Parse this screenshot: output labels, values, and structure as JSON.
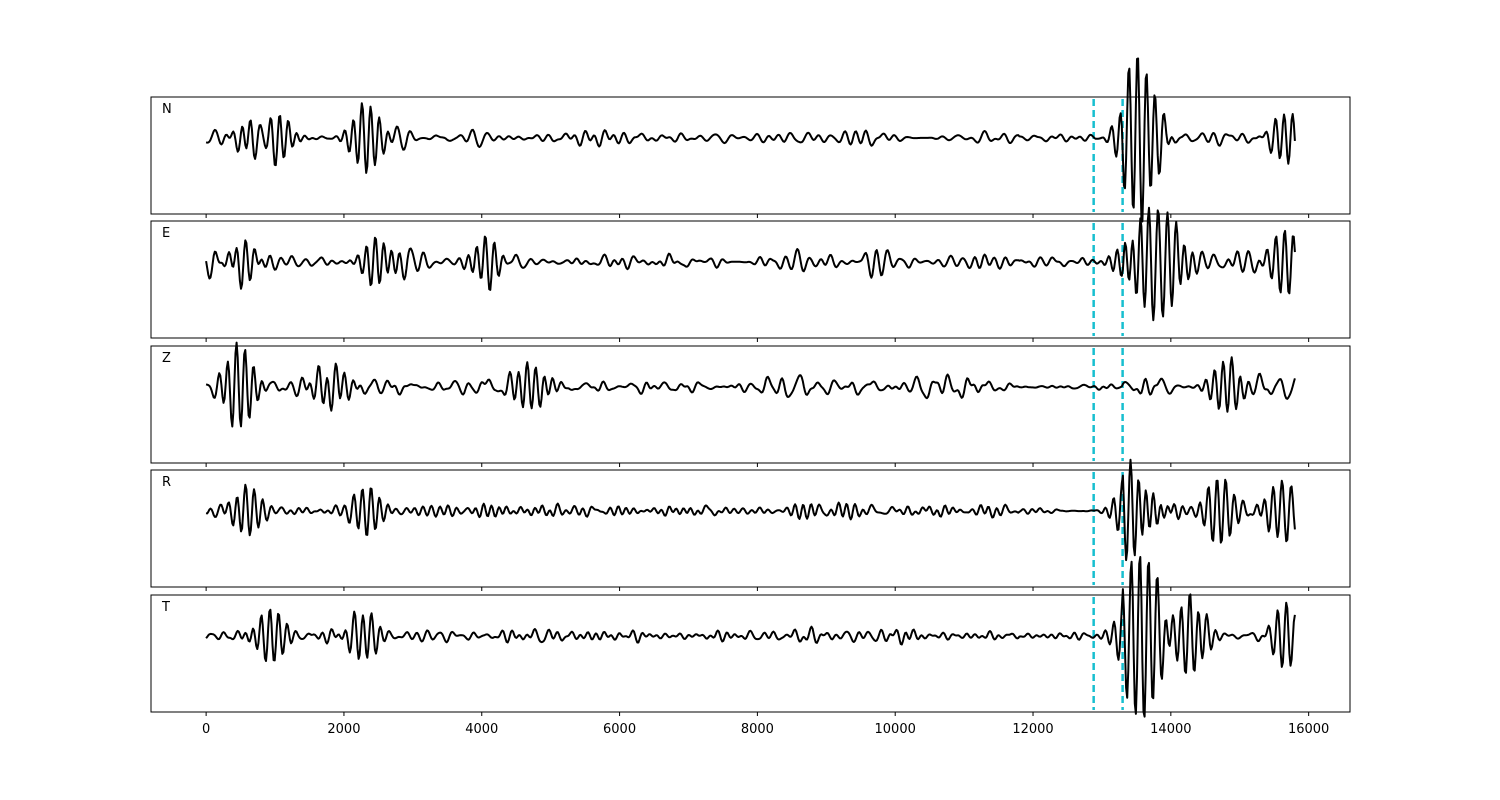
{
  "chart_data": {
    "type": "line",
    "title": "",
    "xlabel": "",
    "ylabel": "",
    "xlim": [
      -800,
      16600
    ],
    "x_ticks": [
      "0",
      "2000",
      "4000",
      "6000",
      "8000",
      "10000",
      "12000",
      "14000",
      "16000"
    ],
    "x_tick_values": [
      0,
      2000,
      4000,
      6000,
      8000,
      10000,
      12000,
      14000,
      16000
    ],
    "samples": 15800,
    "pick_lines": [
      12880,
      13300
    ],
    "pick_color": "#17becf",
    "trace_color": "#000000",
    "grid": false,
    "legend": "none",
    "panels": [
      {
        "label": "N",
        "events": [
          [
            700,
            0.55
          ],
          [
            1000,
            0.7
          ],
          [
            2320,
            0.75
          ],
          [
            13450,
            1.0
          ],
          [
            13700,
            0.55
          ],
          [
            15700,
            0.45
          ]
        ]
      },
      {
        "label": "E",
        "events": [
          [
            500,
            0.45
          ],
          [
            2500,
            0.6
          ],
          [
            4100,
            0.5
          ],
          [
            13400,
            0.6
          ],
          [
            13600,
            1.0
          ],
          [
            14000,
            0.7
          ],
          [
            15700,
            0.55
          ]
        ]
      },
      {
        "label": "Z",
        "events": [
          [
            480,
            1.0
          ],
          [
            1800,
            0.45
          ],
          [
            4700,
            0.55
          ],
          [
            14800,
            0.45
          ]
        ]
      },
      {
        "label": "R",
        "events": [
          [
            600,
            0.45
          ],
          [
            2300,
            0.5
          ],
          [
            13450,
            1.0
          ],
          [
            13650,
            0.65
          ],
          [
            14700,
            0.55
          ],
          [
            15650,
            0.55
          ]
        ]
      },
      {
        "label": "T",
        "events": [
          [
            950,
            0.6
          ],
          [
            2300,
            0.55
          ],
          [
            13450,
            1.0
          ],
          [
            13700,
            0.85
          ],
          [
            14300,
            0.6
          ],
          [
            15700,
            0.55
          ]
        ]
      }
    ]
  }
}
